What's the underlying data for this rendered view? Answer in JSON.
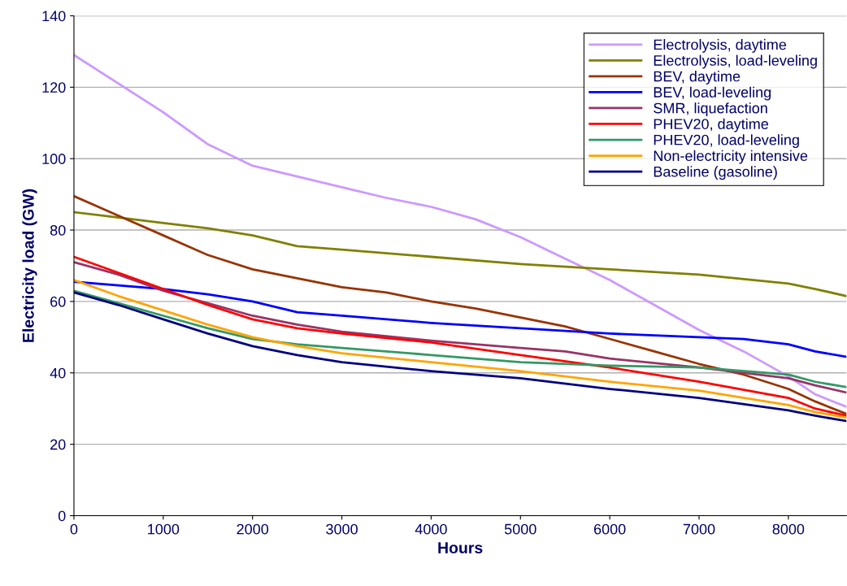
{
  "chart_data": {
    "type": "line",
    "xlabel": "Hours",
    "ylabel": "Electricity load (GW)",
    "xlim": [
      0,
      8650
    ],
    "xticks": [
      0,
      1000,
      2000,
      3000,
      4000,
      5000,
      6000,
      7000,
      8000
    ],
    "ylim": [
      0,
      140
    ],
    "yticks": [
      0,
      20,
      40,
      60,
      80,
      100,
      120,
      140
    ],
    "grid": "y",
    "legend": "top right",
    "marker": "none",
    "line_style": "solid",
    "series": [
      {
        "name": "Electrolysis, daytime",
        "color": "#cc99ff",
        "x": [
          0,
          1000,
          1500,
          2000,
          2500,
          3000,
          3500,
          4000,
          4500,
          5000,
          5500,
          6000,
          6500,
          7000,
          7500,
          8000,
          8300,
          8650
        ],
        "values": [
          129,
          113,
          104,
          98,
          95,
          92,
          89,
          86.5,
          83,
          78,
          72,
          66,
          59,
          52,
          46,
          39,
          34,
          30.5
        ]
      },
      {
        "name": "Electrolysis, load-leveling",
        "color": "#808000",
        "x": [
          0,
          500,
          1000,
          1500,
          2000,
          2500,
          3000,
          4000,
          5000,
          6000,
          7000,
          8000,
          8300,
          8650
        ],
        "values": [
          85,
          83.5,
          82,
          80.5,
          78.5,
          75.5,
          74.5,
          72.5,
          70.5,
          69,
          67.5,
          65,
          63.5,
          61.5
        ]
      },
      {
        "name": "BEV, daytime",
        "color": "#993300",
        "x": [
          0,
          500,
          1000,
          1500,
          2000,
          2500,
          3000,
          3500,
          4000,
          4500,
          5000,
          5500,
          6000,
          6500,
          7000,
          7500,
          8000,
          8300,
          8650
        ],
        "values": [
          89.5,
          84,
          78.5,
          73,
          69,
          66.5,
          64,
          62.5,
          60,
          58,
          55.5,
          53,
          49.5,
          46,
          42.5,
          39.5,
          35.5,
          32,
          28.5
        ]
      },
      {
        "name": "BEV, load-leveling",
        "color": "#0000ff",
        "x": [
          0,
          1000,
          1500,
          2000,
          2500,
          3000,
          4000,
          5000,
          6000,
          7000,
          7500,
          8000,
          8300,
          8650
        ],
        "values": [
          65.5,
          63.5,
          62,
          60,
          57,
          56,
          54,
          52.5,
          51,
          50,
          49.5,
          48,
          46,
          44.5
        ]
      },
      {
        "name": "SMR, liquefaction",
        "color": "#993366",
        "x": [
          0,
          500,
          1000,
          1500,
          2000,
          2500,
          3000,
          4000,
          5000,
          5500,
          6000,
          7000,
          8000,
          8300,
          8650
        ],
        "values": [
          71,
          67.5,
          63,
          59.5,
          56,
          53.5,
          51.5,
          49,
          47,
          46,
          44,
          41.5,
          38.5,
          36.5,
          34.5
        ]
      },
      {
        "name": "PHEV20, daytime",
        "color": "#ff0000",
        "x": [
          0,
          500,
          1000,
          1500,
          2000,
          2500,
          3000,
          4000,
          5000,
          6000,
          7000,
          8000,
          8300,
          8650
        ],
        "values": [
          72.5,
          68,
          63.5,
          59,
          55,
          52.5,
          51,
          48.5,
          45,
          41.5,
          37.5,
          33,
          30,
          28
        ]
      },
      {
        "name": "PHEV20, load-leveling",
        "color": "#339966",
        "x": [
          0,
          500,
          1000,
          1500,
          2000,
          2500,
          3000,
          4000,
          5000,
          6000,
          7000,
          8000,
          8300,
          8650
        ],
        "values": [
          63,
          59.5,
          56,
          52.5,
          49.5,
          48,
          47,
          45,
          43,
          42,
          41.5,
          39.5,
          37.5,
          36
        ]
      },
      {
        "name": "Non-electricity intensive",
        "color": "#ffa500",
        "x": [
          0,
          500,
          1000,
          1500,
          2000,
          2500,
          3000,
          4000,
          5000,
          6000,
          7000,
          8000,
          8300,
          8650
        ],
        "values": [
          66,
          61.5,
          57.5,
          53.5,
          50,
          47.5,
          45.5,
          43,
          40.5,
          37.5,
          35,
          31,
          29,
          27.5
        ]
      },
      {
        "name": "Baseline (gasoline)",
        "color": "#000080",
        "x": [
          0,
          500,
          1000,
          1500,
          2000,
          2500,
          3000,
          4000,
          5000,
          6000,
          7000,
          8000,
          8300,
          8650
        ],
        "values": [
          62.5,
          59,
          55,
          51,
          47.5,
          45,
          43,
          40.5,
          38.5,
          35.5,
          33,
          29.5,
          28,
          26.5
        ]
      }
    ]
  }
}
